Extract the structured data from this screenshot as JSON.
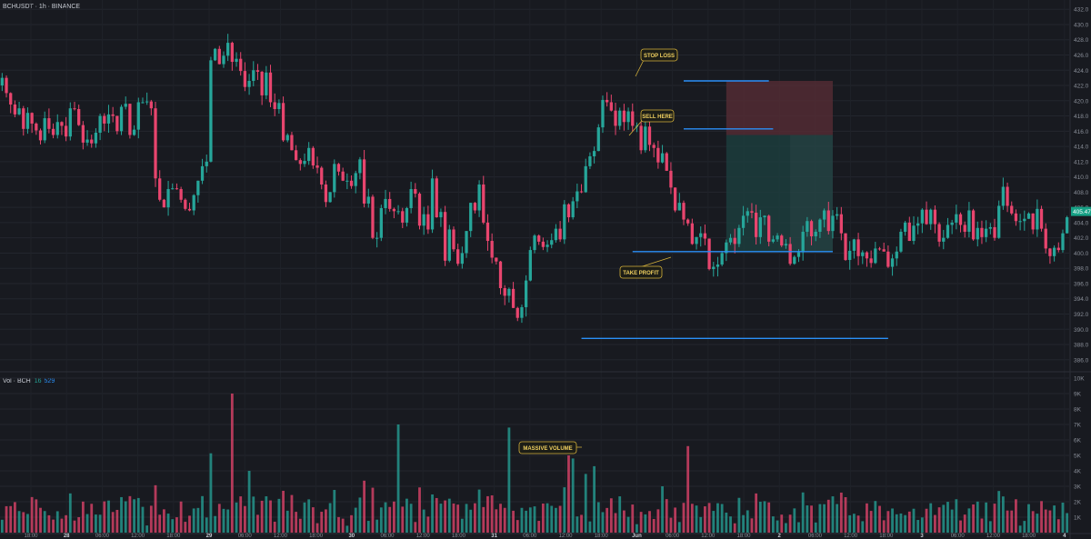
{
  "header": {
    "symbol_title": "BCHUSDT · 1h · BINANCE",
    "volume_label": "Vol · BCH",
    "volume_value_1": "16",
    "volume_value_2": "529"
  },
  "price_tag": {
    "value": "405.47",
    "color": "#16a085"
  },
  "colors": {
    "bull": "#26a69a",
    "bear": "#e8456e",
    "level_line": "#2a8ff7",
    "stop_zone": "#5a2e35",
    "profit_zone": "#1d3f3f",
    "callout_border": "#d4b13a",
    "callout_text": "#f0d060"
  },
  "annotations": {
    "stop_loss": "STOP LOSS",
    "sell_here": "SELL HERE",
    "take_profit": "TAKE PROFIT",
    "massive_volume": "MASSIVE VOLUME"
  },
  "chart_data": [
    {
      "type": "candlestick",
      "yaxis_ticks": [
        "432.0",
        "430.0",
        "428.0",
        "426.0",
        "424.0",
        "422.0",
        "420.0",
        "418.0",
        "416.0",
        "414.0",
        "412.0",
        "410.0",
        "408.0",
        "406.0",
        "404.0",
        "402.0",
        "400.0",
        "398.0",
        "396.0",
        "394.0",
        "392.0",
        "390.0",
        "388.0",
        "386.0"
      ],
      "ylim": [
        385.5,
        432.5
      ],
      "x_tick_labels": [
        "18:00",
        "28",
        "06:00",
        "12:00",
        "18:00",
        "29",
        "06:00",
        "12:00",
        "18:00",
        "30",
        "06:00",
        "12:00",
        "18:00",
        "31",
        "06:00",
        "12:00",
        "18:00",
        "Jun",
        "06:00",
        "12:00",
        "18:00",
        "2",
        "06:00",
        "12:00",
        "18:00",
        "3",
        "06:00",
        "12:00",
        "18:00",
        "4"
      ],
      "closes": [
        423,
        421,
        419.5,
        418.2,
        419,
        416.3,
        418.4,
        417,
        416.1,
        414.8,
        417.7,
        416.3,
        415.5,
        417.2,
        416.7,
        415.3,
        419,
        418.9,
        416.8,
        414.5,
        414.9,
        414.4,
        415.8,
        418,
        417,
        418.2,
        418,
        416,
        419.2,
        419.6,
        415.5,
        416.2,
        419.8,
        419.8,
        419.9,
        419,
        409.8,
        407,
        406,
        408.4,
        408.5,
        408.4,
        407,
        405.8,
        405.6,
        407.6,
        409.5,
        411.4,
        412,
        425.3,
        426.8,
        424.8,
        425.9,
        427.6,
        425.1,
        425.5,
        423.9,
        421.8,
        422.6,
        424,
        423.8,
        420.7,
        423.7,
        419.8,
        418.9,
        419.7,
        414.8,
        415.5,
        413.5,
        412.2,
        411.7,
        412.1,
        413.8,
        411.5,
        411.2,
        409,
        406.7,
        408,
        411.7,
        410.7,
        409.5,
        409.5,
        408.8,
        410.5,
        412.3,
        406.5,
        407.4,
        402,
        402,
        405.9,
        407.1,
        405.8,
        405.5,
        405.5,
        404,
        405.9,
        408.4,
        407.8,
        403.6,
        405.1,
        403.1,
        409.8,
        404.7,
        405.4,
        399,
        403.1,
        400.5,
        398.6,
        400,
        402.9,
        406.6,
        405.6,
        409,
        404,
        401.6,
        399.4,
        398.9,
        395.4,
        394.4,
        395.3,
        392.8,
        391.5,
        392.9,
        396.4,
        400.4,
        402.3,
        401.5,
        400.8,
        401.1,
        401.7,
        403.2,
        401.8,
        406.4,
        404.7,
        406.8,
        408.1,
        408,
        411.4,
        412.7,
        413.4,
        416.5,
        420.1,
        419.8,
        418.7,
        416.7,
        418.7,
        417.2,
        418.6,
        416.7,
        416.7,
        413.5,
        416.6,
        414.2,
        413.8,
        411.9,
        413.1,
        410.8,
        408.6,
        405.6,
        406.6,
        404.4,
        403.9,
        401.2,
        402.1,
        402.6,
        401.9,
        397.9,
        398.2,
        398.5,
        400,
        401.4,
        402,
        401.2,
        403.3,
        404.9,
        405.5,
        405.3,
        402.1,
        404.7,
        404.9,
        401.5,
        401.8,
        402.3,
        401,
        401.2,
        398.6,
        399.5,
        400.1,
        402.8,
        404.2,
        402.2,
        402.8,
        404.4,
        405.6,
        402.9,
        404.9,
        405.1,
        402.6,
        399.1,
        400.3,
        401.8,
        399.6,
        400.1,
        399.3,
        398.7,
        400.6,
        400.5,
        400.2,
        398.2,
        399.3,
        400.2,
        402.8,
        404,
        401.6,
        403.6,
        403.9,
        405.7,
        403.8,
        405.7,
        403.8,
        401.5,
        402,
        403.7,
        404,
        405.1,
        403.7,
        402.8,
        405.6,
        401.8,
        403.3,
        402.1,
        403.2,
        403.4,
        402,
        406.2,
        408.7,
        406.2,
        405.2,
        404.2,
        404.2,
        404.5,
        405.2,
        403.1,
        405.8,
        403.2,
        400.6,
        399.6,
        400.7,
        400.4,
        402.6,
        404.7
      ]
    },
    {
      "type": "bar",
      "title": "Vol · BCH",
      "yaxis_ticks": [
        "10K",
        "9K",
        "8K",
        "7K",
        "6K",
        "5K",
        "4K",
        "3K",
        "2K",
        "1K"
      ],
      "ylim": [
        0,
        10000
      ]
    }
  ]
}
